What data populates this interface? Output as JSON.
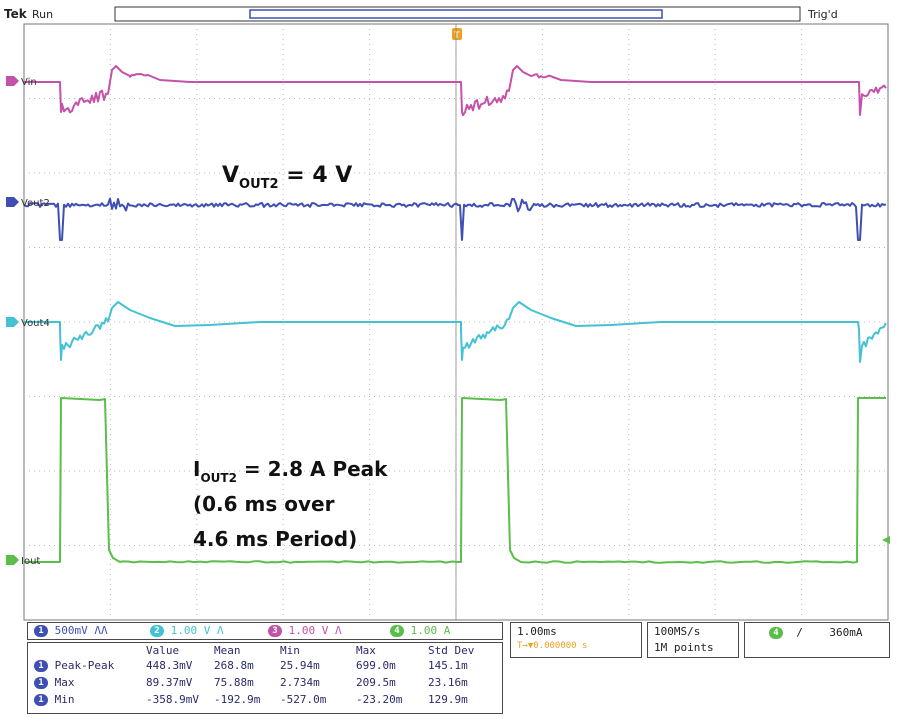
{
  "header": {
    "brand": "Tek",
    "state": "Run",
    "trig_status": "Trig'd",
    "trigger_marker": "T"
  },
  "annotations": {
    "vout_text_main": "V",
    "vout_text_sub": "OUT2",
    "vout_text_rest": " = 4 V",
    "iout_text_main": "I",
    "iout_text_sub": "OUT2",
    "iout_text_rest": " = 2.8 A Peak",
    "iout_line2": "(0.6 ms over",
    "iout_line3": "4.6 ms Period)"
  },
  "channels": [
    {
      "number": "1",
      "scale": "500mV",
      "coupling": "ΛΛ",
      "color": "#3e4fb3"
    },
    {
      "number": "2",
      "scale": "1.00 V",
      "coupling": "Λ",
      "color": "#45c1d4"
    },
    {
      "number": "3",
      "scale": "1.00 V",
      "coupling": "Λ",
      "color": "#c452a8"
    },
    {
      "number": "4",
      "scale": "1.00 A",
      "coupling": "",
      "color": "#5bbd4a"
    }
  ],
  "timebase": {
    "scale": "1.00ms",
    "position": "T→▼0.000000 s",
    "sample_rate": "100MS/s",
    "record_length": "1M points"
  },
  "trigger": {
    "source": "4",
    "slope": "/",
    "level": "360mA"
  },
  "measurements": {
    "headers": [
      "Value",
      "Mean",
      "Min",
      "Max",
      "Std Dev"
    ],
    "rows": [
      {
        "channel": "1",
        "name": "Peak-Peak",
        "values": [
          "448.3mV",
          "268.8m",
          "25.94m",
          "699.0m",
          "145.1m"
        ]
      },
      {
        "channel": "1",
        "name": "Max",
        "values": [
          "89.37mV",
          "75.88m",
          "2.734m",
          "209.5m",
          "23.16m"
        ]
      },
      {
        "channel": "1",
        "name": "Min",
        "values": [
          "-358.9mV",
          "-192.9m",
          "-527.0m",
          "-23.20m",
          "129.9m"
        ]
      }
    ]
  },
  "chart_data": {
    "type": "line",
    "title": "",
    "xlabel": "",
    "ylabel": "",
    "x_divisions": 10,
    "y_divisions": 8,
    "grid": true,
    "period_ms": 4.6,
    "pulse_width_ms": 0.6,
    "series": [
      {
        "name": "Vin",
        "color": "#c452a8",
        "label": "Vin"
      },
      {
        "name": "Vout2",
        "color": "#3e4fb3",
        "label": "Vout2"
      },
      {
        "name": "Vout4",
        "color": "#45c1d4",
        "label": "Vout4"
      },
      {
        "name": "Iout",
        "color": "#5bbd4a",
        "label": "Iout"
      }
    ]
  }
}
